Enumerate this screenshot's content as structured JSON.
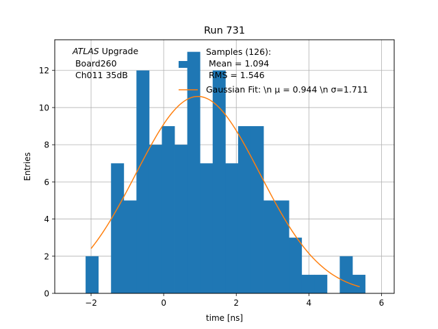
{
  "chart_data": {
    "type": "bar",
    "title": "Run 731",
    "xlabel": "time [ns]",
    "ylabel": "Entries",
    "xlim": [
      -3.0,
      6.35
    ],
    "ylim": [
      0,
      13.65
    ],
    "grid": true,
    "xticks": [
      -2,
      0,
      2,
      4,
      6
    ],
    "yticks": [
      0,
      2,
      4,
      6,
      8,
      10,
      12
    ],
    "xtick_labels": [
      "−2",
      "0",
      "2",
      "4",
      "6"
    ],
    "ytick_labels": [
      "0",
      "2",
      "4",
      "6",
      "8",
      "10",
      "12"
    ],
    "histogram": {
      "color": "#1f77b4",
      "bin_width": 0.35,
      "bins": [
        {
          "left": -2.15,
          "count": 2
        },
        {
          "left": -1.45,
          "count": 7
        },
        {
          "left": -1.1,
          "count": 5
        },
        {
          "left": -0.75,
          "count": 12
        },
        {
          "left": -0.4,
          "count": 8
        },
        {
          "left": -0.05,
          "count": 9
        },
        {
          "left": 0.3,
          "count": 8
        },
        {
          "left": 0.65,
          "count": 13
        },
        {
          "left": 1.0,
          "count": 7
        },
        {
          "left": 1.35,
          "count": 12
        },
        {
          "left": 1.7,
          "count": 7
        },
        {
          "left": 2.05,
          "count": 9
        },
        {
          "left": 2.4,
          "count": 9
        },
        {
          "left": 2.75,
          "count": 5
        },
        {
          "left": 3.1,
          "count": 5
        },
        {
          "left": 3.45,
          "count": 3
        },
        {
          "left": 3.8,
          "count": 1
        },
        {
          "left": 4.15,
          "count": 1
        },
        {
          "left": 4.85,
          "count": 2
        },
        {
          "left": 5.2,
          "count": 1
        }
      ]
    },
    "fit": {
      "label": "Gaussian Fit: \\n $\\mu$ = 0.944 \\n $\\sigma$=1.711",
      "display_label": "Gaussian Fit: \\n μ = 0.944 \\n σ=1.711",
      "color": "#ff7f0e",
      "amplitude": 10.6,
      "mu": 0.944,
      "sigma": 1.711,
      "x_range": [
        -2.0,
        5.4
      ]
    },
    "legend": {
      "placement": "top-right",
      "samples_lines": [
        "Samples (126):",
        " Mean = 1.094",
        " RMS = 1.546"
      ]
    },
    "annotation": {
      "italic_part": "ATLAS",
      "rest_first_line": " Upgrade",
      "lines": [
        " Board260",
        " Ch011 35dB"
      ]
    }
  }
}
